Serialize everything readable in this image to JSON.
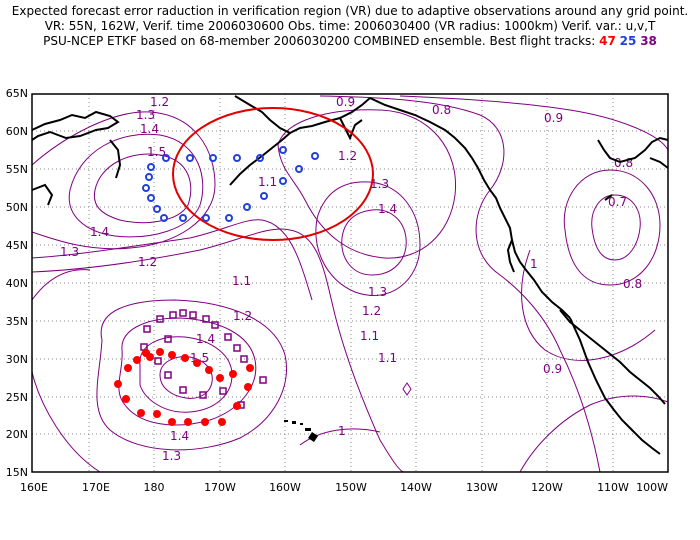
{
  "header": {
    "line1": "Expected forecast error raduction in verification region (VR) due to adaptive observations around any grid point.",
    "line2": "VR: 55N, 162W, Verif. time 2006030600   Obs. time: 2006030400 (VR radius: 1000km)    Verif. var.: u,v,T",
    "line3_prefix": "PSU-NCEP ETKF based on 68-member 2006030200 COMBINED ensemble.  Best flight tracks: ",
    "track_red": "47",
    "track_blue": "25",
    "track_purple": "38"
  },
  "map": {
    "lat_labels": [
      "65N",
      "60N",
      "55N",
      "50N",
      "45N",
      "40N",
      "35N",
      "30N",
      "25N",
      "20N",
      "15N"
    ],
    "lon_labels": [
      "160E",
      "170E",
      "180",
      "170W",
      "160W",
      "150W",
      "140W",
      "130W",
      "120W",
      "110W",
      "100W"
    ],
    "contour_labels": [
      "1.2",
      "1.3",
      "1.4",
      "1.5",
      "1.4",
      "1.3",
      "1.2",
      "1.1",
      "1.1",
      "0.9",
      "0.8",
      "1.2",
      "1.3",
      "1.4",
      "1.3",
      "1.2",
      "1.1",
      "0.9",
      "0.8",
      "0.7",
      "0.8",
      "1",
      "1.2",
      "1.4",
      "1.5",
      "1.4",
      "1.3",
      "1.1",
      "0.9",
      "1"
    ],
    "colors": {
      "contour": "#800080",
      "coast": "#000000",
      "vr_circle": "#e00000",
      "track_red": "#ff0000",
      "track_blue": "#2040e0",
      "track_purple": "#800080"
    }
  }
}
